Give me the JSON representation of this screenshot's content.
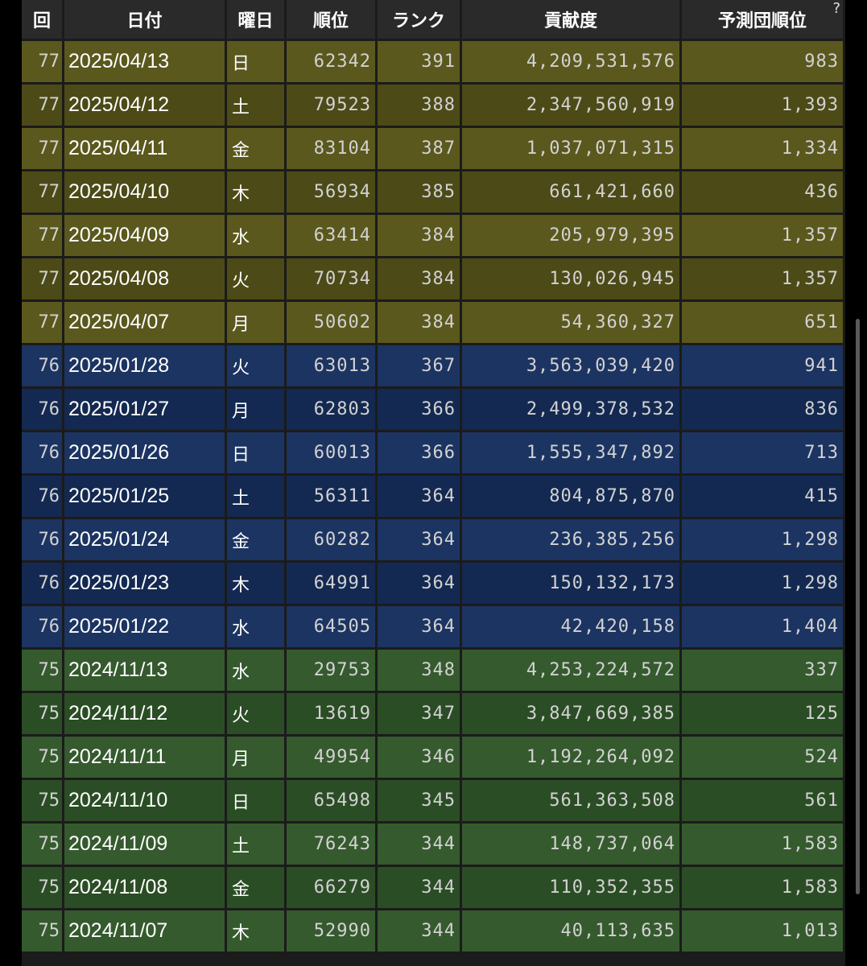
{
  "table": {
    "headers": {
      "kai": "回",
      "date": "日付",
      "dow": "曜日",
      "rank_pos": "順位",
      "rank": "ランク",
      "contribution": "貢献度",
      "team_rank": "予測団順位",
      "help_mark": "?"
    },
    "rows": [
      {
        "kai": "77",
        "date": "2025/04/13",
        "dow": "日",
        "rank_pos": "62342",
        "rank": "391",
        "contribution": "4,209,531,576",
        "team_rank": "983"
      },
      {
        "kai": "77",
        "date": "2025/04/12",
        "dow": "土",
        "rank_pos": "79523",
        "rank": "388",
        "contribution": "2,347,560,919",
        "team_rank": "1,393"
      },
      {
        "kai": "77",
        "date": "2025/04/11",
        "dow": "金",
        "rank_pos": "83104",
        "rank": "387",
        "contribution": "1,037,071,315",
        "team_rank": "1,334"
      },
      {
        "kai": "77",
        "date": "2025/04/10",
        "dow": "木",
        "rank_pos": "56934",
        "rank": "385",
        "contribution": "661,421,660",
        "team_rank": "436"
      },
      {
        "kai": "77",
        "date": "2025/04/09",
        "dow": "水",
        "rank_pos": "63414",
        "rank": "384",
        "contribution": "205,979,395",
        "team_rank": "1,357"
      },
      {
        "kai": "77",
        "date": "2025/04/08",
        "dow": "火",
        "rank_pos": "70734",
        "rank": "384",
        "contribution": "130,026,945",
        "team_rank": "1,357"
      },
      {
        "kai": "77",
        "date": "2025/04/07",
        "dow": "月",
        "rank_pos": "50602",
        "rank": "384",
        "contribution": "54,360,327",
        "team_rank": "651"
      },
      {
        "kai": "76",
        "date": "2025/01/28",
        "dow": "火",
        "rank_pos": "63013",
        "rank": "367",
        "contribution": "3,563,039,420",
        "team_rank": "941"
      },
      {
        "kai": "76",
        "date": "2025/01/27",
        "dow": "月",
        "rank_pos": "62803",
        "rank": "366",
        "contribution": "2,499,378,532",
        "team_rank": "836"
      },
      {
        "kai": "76",
        "date": "2025/01/26",
        "dow": "日",
        "rank_pos": "60013",
        "rank": "366",
        "contribution": "1,555,347,892",
        "team_rank": "713"
      },
      {
        "kai": "76",
        "date": "2025/01/25",
        "dow": "土",
        "rank_pos": "56311",
        "rank": "364",
        "contribution": "804,875,870",
        "team_rank": "415"
      },
      {
        "kai": "76",
        "date": "2025/01/24",
        "dow": "金",
        "rank_pos": "60282",
        "rank": "364",
        "contribution": "236,385,256",
        "team_rank": "1,298"
      },
      {
        "kai": "76",
        "date": "2025/01/23",
        "dow": "木",
        "rank_pos": "64991",
        "rank": "364",
        "contribution": "150,132,173",
        "team_rank": "1,298"
      },
      {
        "kai": "76",
        "date": "2025/01/22",
        "dow": "水",
        "rank_pos": "64505",
        "rank": "364",
        "contribution": "42,420,158",
        "team_rank": "1,404"
      },
      {
        "kai": "75",
        "date": "2024/11/13",
        "dow": "水",
        "rank_pos": "29753",
        "rank": "348",
        "contribution": "4,253,224,572",
        "team_rank": "337"
      },
      {
        "kai": "75",
        "date": "2024/11/12",
        "dow": "火",
        "rank_pos": "13619",
        "rank": "347",
        "contribution": "3,847,669,385",
        "team_rank": "125"
      },
      {
        "kai": "75",
        "date": "2024/11/11",
        "dow": "月",
        "rank_pos": "49954",
        "rank": "346",
        "contribution": "1,192,264,092",
        "team_rank": "524"
      },
      {
        "kai": "75",
        "date": "2024/11/10",
        "dow": "日",
        "rank_pos": "65498",
        "rank": "345",
        "contribution": "561,363,508",
        "team_rank": "561"
      },
      {
        "kai": "75",
        "date": "2024/11/09",
        "dow": "土",
        "rank_pos": "76243",
        "rank": "344",
        "contribution": "148,737,064",
        "team_rank": "1,583"
      },
      {
        "kai": "75",
        "date": "2024/11/08",
        "dow": "金",
        "rank_pos": "66279",
        "rank": "344",
        "contribution": "110,352,355",
        "team_rank": "1,583"
      },
      {
        "kai": "75",
        "date": "2024/11/07",
        "dow": "木",
        "rank_pos": "52990",
        "rank": "344",
        "contribution": "40,113,635",
        "team_rank": "1,013"
      }
    ]
  },
  "colors": {
    "round_77": "#5a581d",
    "round_76": "#1c3461",
    "round_75": "#355a2e",
    "header_bg": "#2a2a2a",
    "grid_line": "#1b1b1b"
  }
}
